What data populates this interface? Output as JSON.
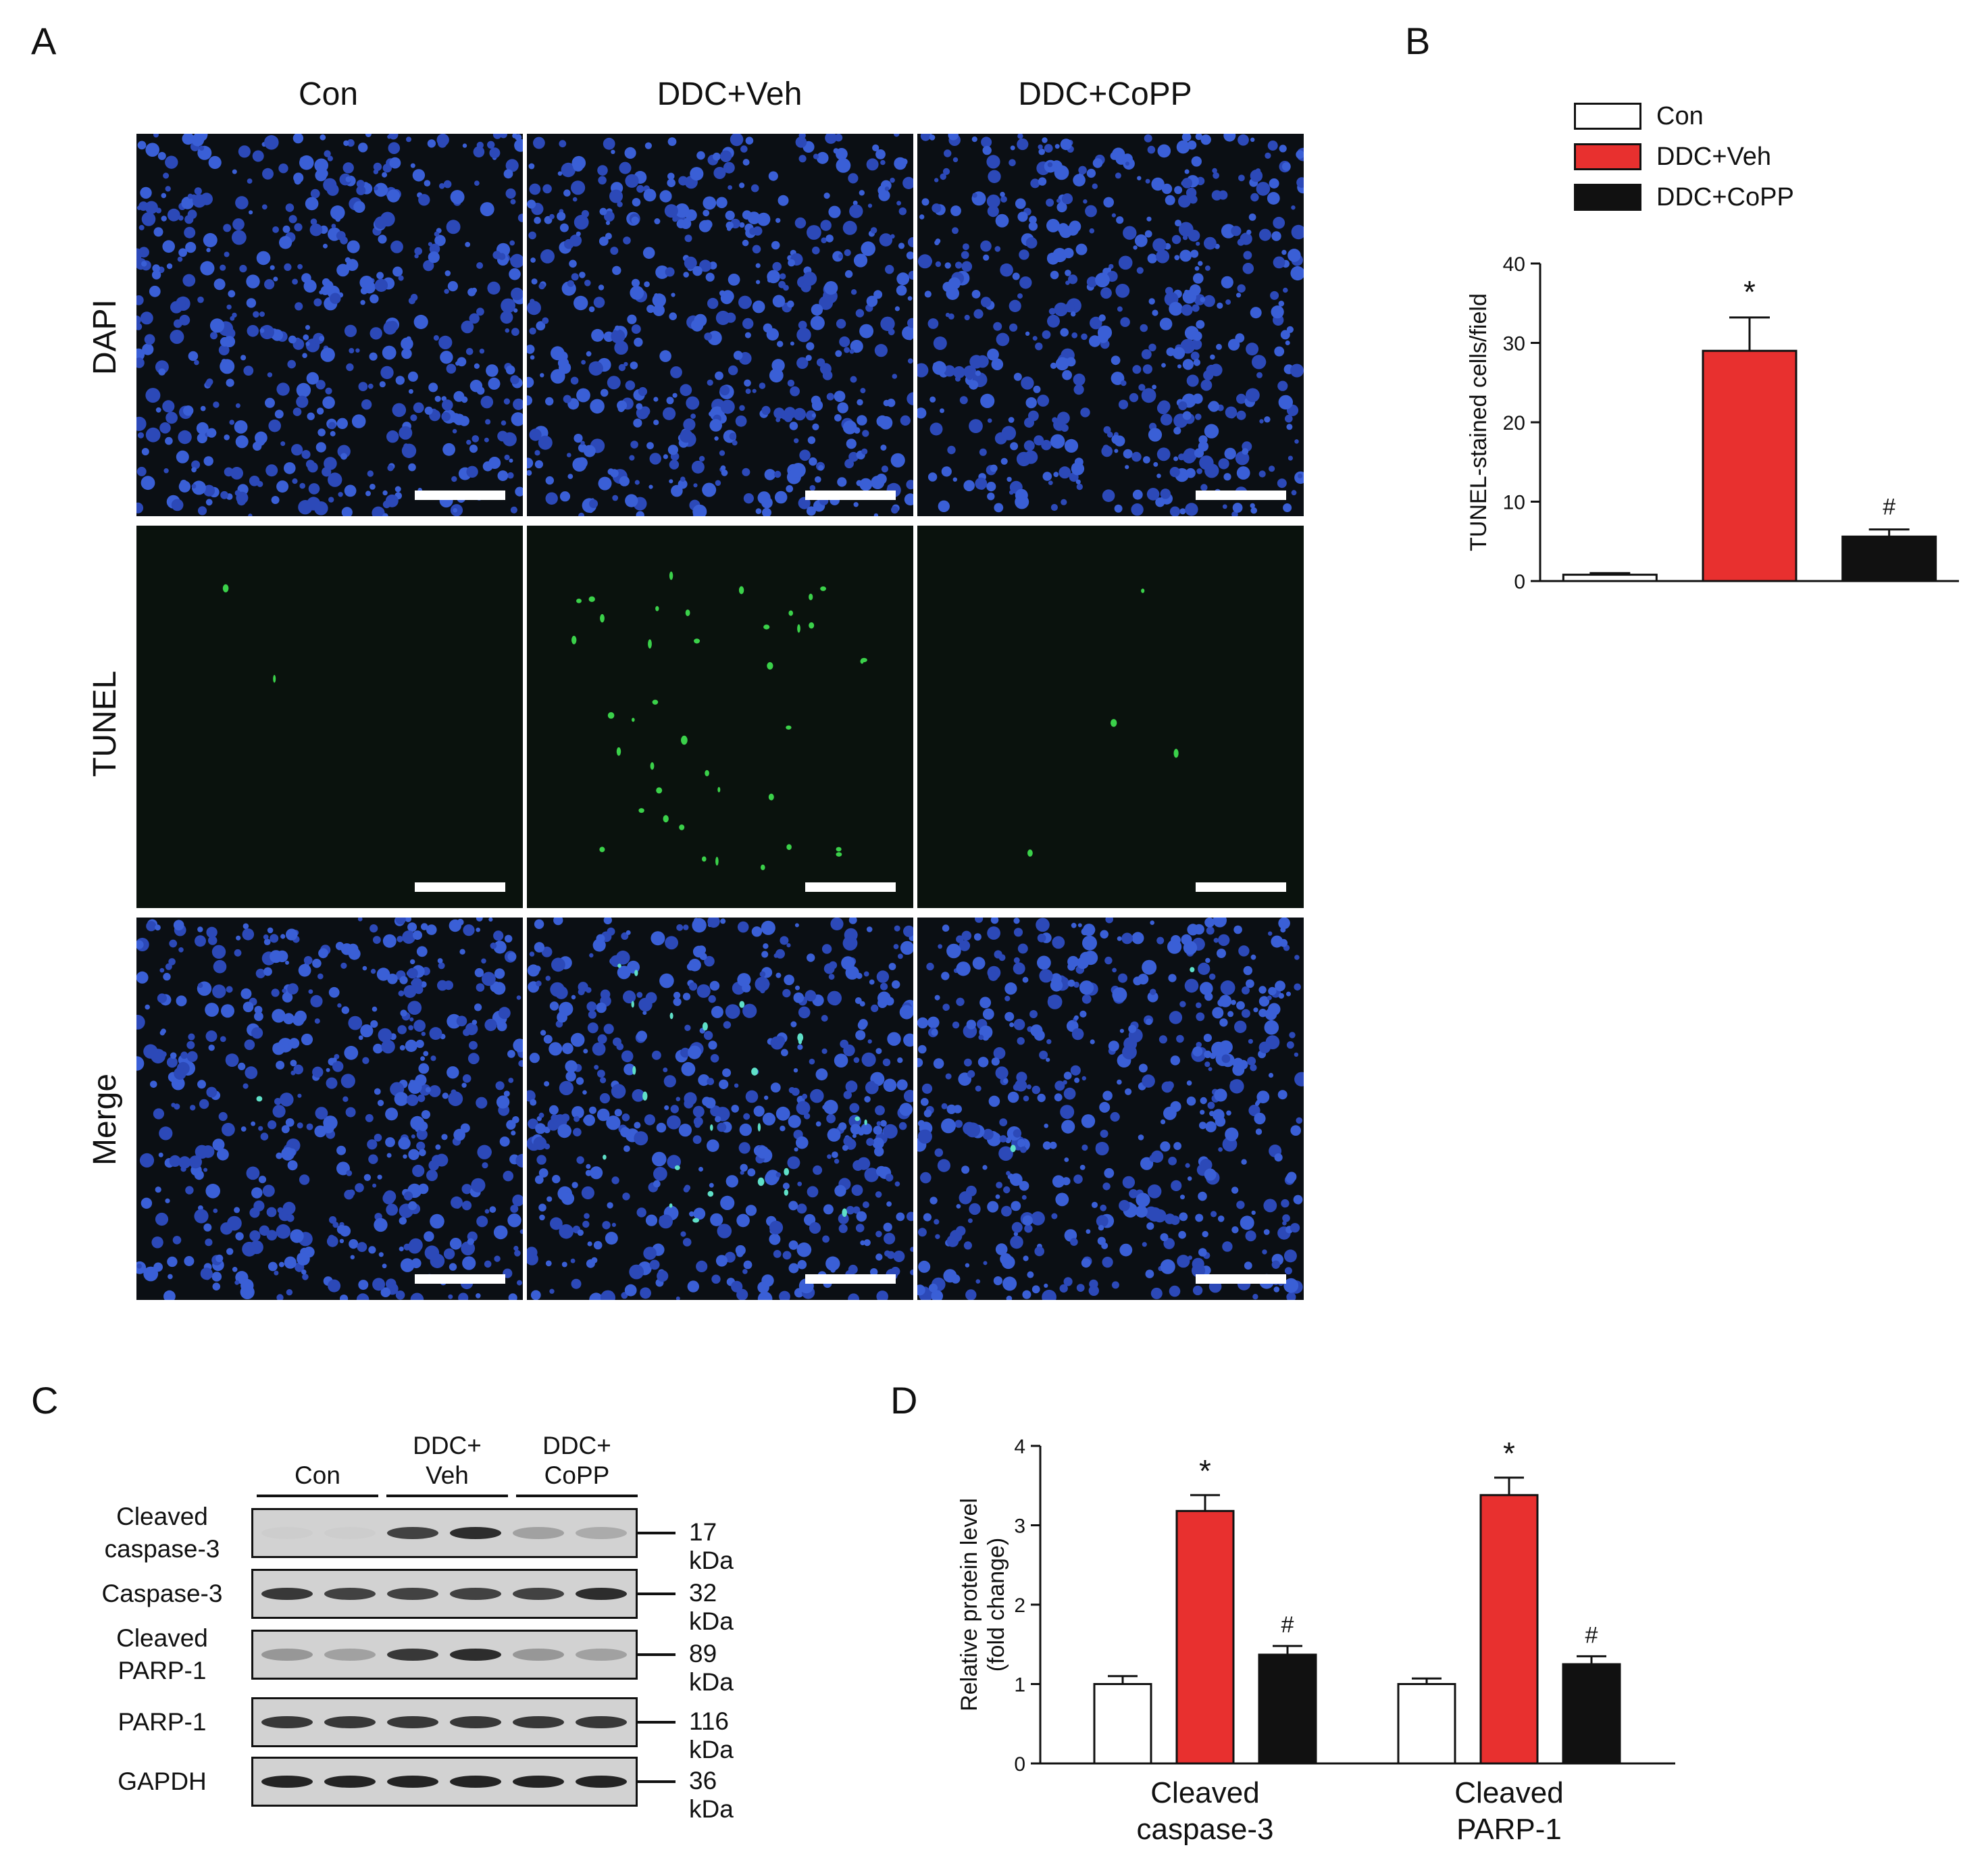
{
  "panelA": {
    "letter": "A",
    "columns": [
      "Con",
      "DDC+Veh",
      "DDC+CoPP"
    ],
    "rows": [
      "DAPI",
      "TUNEL",
      "Merge"
    ]
  },
  "panelB": {
    "letter": "B",
    "legend": [
      {
        "label": "Con",
        "color": "#ffffff"
      },
      {
        "label": "DDC+Veh",
        "color": "#e8302f"
      },
      {
        "label": "DDC+CoPP",
        "color": "#111111"
      }
    ]
  },
  "panelC": {
    "letter": "C",
    "groups": [
      {
        "line1": "",
        "line2": "Con"
      },
      {
        "line1": "DDC+",
        "line2": "Veh"
      },
      {
        "line1": "DDC+",
        "line2": "CoPP"
      }
    ],
    "blots": [
      {
        "label_lines": [
          "Cleaved",
          "caspase-3"
        ],
        "kda": "17 kDa",
        "intensity": [
          0.02,
          0.02,
          0.75,
          0.85,
          0.25,
          0.2
        ]
      },
      {
        "label_lines": [
          "Caspase-3"
        ],
        "kda": "32 kDa",
        "intensity": [
          0.8,
          0.75,
          0.75,
          0.75,
          0.75,
          0.85
        ]
      },
      {
        "label_lines": [
          "Cleaved",
          "PARP-1"
        ],
        "kda": "89 kDa",
        "intensity": [
          0.3,
          0.25,
          0.8,
          0.85,
          0.3,
          0.25
        ]
      },
      {
        "label_lines": [
          "PARP-1"
        ],
        "kda": "116 kDa",
        "intensity": [
          0.8,
          0.8,
          0.8,
          0.8,
          0.8,
          0.8
        ]
      },
      {
        "label_lines": [
          "GAPDH"
        ],
        "kda": "36 kDa",
        "intensity": [
          0.9,
          0.9,
          0.9,
          0.9,
          0.9,
          0.9
        ]
      }
    ]
  },
  "panelD": {
    "letter": "D"
  },
  "chart_data": [
    {
      "type": "bar",
      "panel": "B",
      "ylabel": "TUNEL-stained cells/field",
      "xlabel": "",
      "ylim": [
        0,
        40
      ],
      "yticks": [
        0,
        10,
        20,
        30,
        40
      ],
      "categories": [
        "Con",
        "DDC+Veh",
        "DDC+CoPP"
      ],
      "values": [
        0.8,
        29,
        5.6
      ],
      "errors": [
        0.2,
        4.2,
        0.9
      ],
      "annotations": [
        "",
        "*",
        "#"
      ],
      "colors": [
        "#ffffff",
        "#e8302f",
        "#111111"
      ]
    },
    {
      "type": "bar",
      "panel": "D",
      "ylabel": "Relative protein level (fold change)",
      "ylabel_lines": [
        "Relative protein level",
        "(fold change)"
      ],
      "xlabel": "",
      "ylim": [
        0,
        4
      ],
      "yticks": [
        0,
        1,
        2,
        3,
        4
      ],
      "categories": [
        "Cleaved caspase-3",
        "Cleaved PARP-1"
      ],
      "category_lines": [
        [
          "Cleaved",
          "caspase-3"
        ],
        [
          "Cleaved",
          "PARP-1"
        ]
      ],
      "series": [
        {
          "name": "Con",
          "color": "#ffffff",
          "values": [
            1.0,
            1.0
          ],
          "errors": [
            0.1,
            0.07
          ],
          "annotations": [
            "",
            ""
          ]
        },
        {
          "name": "DDC+Veh",
          "color": "#e8302f",
          "values": [
            3.18,
            3.38
          ],
          "errors": [
            0.2,
            0.22
          ],
          "annotations": [
            "*",
            "*"
          ]
        },
        {
          "name": "DDC+CoPP",
          "color": "#111111",
          "values": [
            1.37,
            1.25
          ],
          "errors": [
            0.11,
            0.1
          ],
          "annotations": [
            "#",
            "#"
          ]
        }
      ]
    }
  ]
}
